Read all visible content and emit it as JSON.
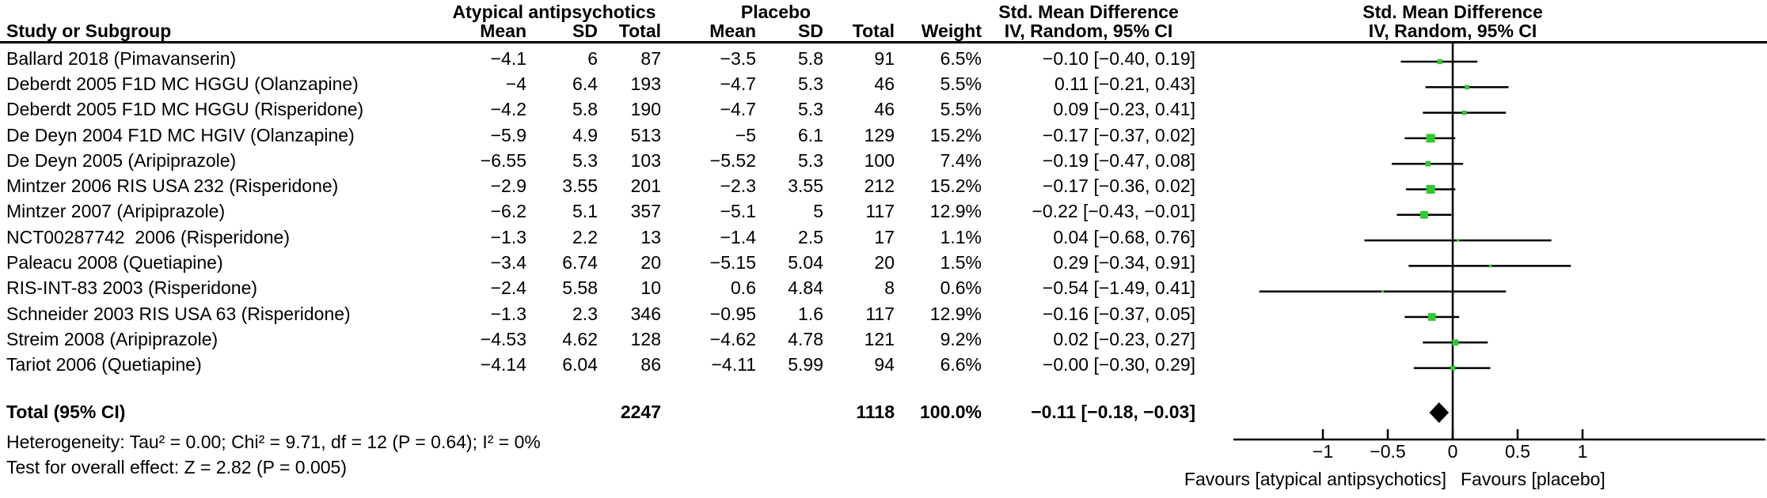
{
  "header": {
    "study": "Study or Subgroup",
    "group1": "Atypical antipsychotics",
    "group2": "Placebo",
    "mean": "Mean",
    "sd": "SD",
    "total": "Total",
    "weight": "Weight",
    "smd": "Std. Mean Difference",
    "method": "IV, Random, 95% CI"
  },
  "rows": [
    {
      "study": "Ballard 2018 (Pimavanserin)",
      "a_mean": "−4.1",
      "a_sd": "6",
      "a_total": "87",
      "p_mean": "−3.5",
      "p_sd": "5.8",
      "p_total": "91",
      "weight": "6.5%",
      "ci": "−0.10 [−0.40, 0.19]"
    },
    {
      "study": "Deberdt 2005 F1D MC HGGU (Olanzapine)",
      "a_mean": "−4",
      "a_sd": "6.4",
      "a_total": "193",
      "p_mean": "−4.7",
      "p_sd": "5.3",
      "p_total": "46",
      "weight": "5.5%",
      "ci": "0.11 [−0.21, 0.43]"
    },
    {
      "study": "Deberdt 2005 F1D MC HGGU (Risperidone)",
      "a_mean": "−4.2",
      "a_sd": "5.8",
      "a_total": "190",
      "p_mean": "−4.7",
      "p_sd": "5.3",
      "p_total": "46",
      "weight": "5.5%",
      "ci": "0.09 [−0.23, 0.41]"
    },
    {
      "study": "De Deyn 2004 F1D MC HGIV (Olanzapine)",
      "a_mean": "−5.9",
      "a_sd": "4.9",
      "a_total": "513",
      "p_mean": "−5",
      "p_sd": "6.1",
      "p_total": "129",
      "weight": "15.2%",
      "ci": "−0.17 [−0.37, 0.02]"
    },
    {
      "study": "De Deyn 2005 (Aripiprazole)",
      "a_mean": "−6.55",
      "a_sd": "5.3",
      "a_total": "103",
      "p_mean": "−5.52",
      "p_sd": "5.3",
      "p_total": "100",
      "weight": "7.4%",
      "ci": "−0.19 [−0.47, 0.08]"
    },
    {
      "study": "Mintzer 2006 RIS USA 232 (Risperidone)",
      "a_mean": "−2.9",
      "a_sd": "3.55",
      "a_total": "201",
      "p_mean": "−2.3",
      "p_sd": "3.55",
      "p_total": "212",
      "weight": "15.2%",
      "ci": "−0.17 [−0.36, 0.02]"
    },
    {
      "study": "Mintzer 2007 (Aripiprazole)",
      "a_mean": "−6.2",
      "a_sd": "5.1",
      "a_total": "357",
      "p_mean": "−5.1",
      "p_sd": "5",
      "p_total": "117",
      "weight": "12.9%",
      "ci": "−0.22 [−0.43, −0.01]"
    },
    {
      "study": "NCT00287742  2006 (Risperidone)",
      "a_mean": "−1.3",
      "a_sd": "2.2",
      "a_total": "13",
      "p_mean": "−1.4",
      "p_sd": "2.5",
      "p_total": "17",
      "weight": "1.1%",
      "ci": "0.04 [−0.68, 0.76]"
    },
    {
      "study": "Paleacu 2008 (Quetiapine)",
      "a_mean": "−3.4",
      "a_sd": "6.74",
      "a_total": "20",
      "p_mean": "−5.15",
      "p_sd": "5.04",
      "p_total": "20",
      "weight": "1.5%",
      "ci": "0.29 [−0.34, 0.91]"
    },
    {
      "study": "RIS-INT-83 2003 (Risperidone)",
      "a_mean": "−2.4",
      "a_sd": "5.58",
      "a_total": "10",
      "p_mean": "0.6",
      "p_sd": "4.84",
      "p_total": "8",
      "weight": "0.6%",
      "ci": "−0.54 [−1.49, 0.41]"
    },
    {
      "study": "Schneider 2003 RIS USA 63 (Risperidone)",
      "a_mean": "−1.3",
      "a_sd": "2.3",
      "a_total": "346",
      "p_mean": "−0.95",
      "p_sd": "1.6",
      "p_total": "117",
      "weight": "12.9%",
      "ci": "−0.16 [−0.37, 0.05]"
    },
    {
      "study": "Streim 2008 (Aripiprazole)",
      "a_mean": "−4.53",
      "a_sd": "4.62",
      "a_total": "128",
      "p_mean": "−4.62",
      "p_sd": "4.78",
      "p_total": "121",
      "weight": "9.2%",
      "ci": "0.02 [−0.23, 0.27]"
    },
    {
      "study": "Tariot 2006 (Quetiapine)",
      "a_mean": "−4.14",
      "a_sd": "6.04",
      "a_total": "86",
      "p_mean": "−4.11",
      "p_sd": "5.99",
      "p_total": "94",
      "weight": "6.6%",
      "ci": "−0.00 [−0.30, 0.29]"
    }
  ],
  "total": {
    "label": "Total (95% CI)",
    "a_total": "2247",
    "p_total": "1118",
    "weight": "100.0%",
    "ci": "−0.11 [−0.18, −0.03]"
  },
  "footer": {
    "heterogeneity": "Heterogeneity: Tau² = 0.00; Chi² = 9.71, df = 12 (P = 0.64); I² = 0%",
    "overall": "Test for overall effect: Z = 2.82 (P = 0.005)"
  },
  "chart_data": {
    "type": "scatter",
    "variant": "forest-plot",
    "title": "Std. Mean Difference",
    "effect_measure": "IV, Random, 95% CI",
    "studies": [
      {
        "name": "Ballard 2018 (Pimavanserin)",
        "est": -0.1,
        "lo": -0.4,
        "hi": 0.19,
        "weight": 6.5
      },
      {
        "name": "Deberdt 2005 F1D MC HGGU (Olanzapine)",
        "est": 0.11,
        "lo": -0.21,
        "hi": 0.43,
        "weight": 5.5
      },
      {
        "name": "Deberdt 2005 F1D MC HGGU (Risperidone)",
        "est": 0.09,
        "lo": -0.23,
        "hi": 0.41,
        "weight": 5.5
      },
      {
        "name": "De Deyn 2004 F1D MC HGIV (Olanzapine)",
        "est": -0.17,
        "lo": -0.37,
        "hi": 0.02,
        "weight": 15.2
      },
      {
        "name": "De Deyn 2005 (Aripiprazole)",
        "est": -0.19,
        "lo": -0.47,
        "hi": 0.08,
        "weight": 7.4
      },
      {
        "name": "Mintzer 2006 RIS USA 232 (Risperidone)",
        "est": -0.17,
        "lo": -0.36,
        "hi": 0.02,
        "weight": 15.2
      },
      {
        "name": "Mintzer 2007 (Aripiprazole)",
        "est": -0.22,
        "lo": -0.43,
        "hi": -0.01,
        "weight": 12.9
      },
      {
        "name": "NCT00287742  2006 (Risperidone)",
        "est": 0.04,
        "lo": -0.68,
        "hi": 0.76,
        "weight": 1.1
      },
      {
        "name": "Paleacu 2008 (Quetiapine)",
        "est": 0.29,
        "lo": -0.34,
        "hi": 0.91,
        "weight": 1.5
      },
      {
        "name": "RIS-INT-83 2003 (Risperidone)",
        "est": -0.54,
        "lo": -1.49,
        "hi": 0.41,
        "weight": 0.6
      },
      {
        "name": "Schneider 2003 RIS USA 63 (Risperidone)",
        "est": -0.16,
        "lo": -0.37,
        "hi": 0.05,
        "weight": 12.9
      },
      {
        "name": "Streim 2008 (Aripiprazole)",
        "est": 0.02,
        "lo": -0.23,
        "hi": 0.27,
        "weight": 9.2
      },
      {
        "name": "Tariot 2006 (Quetiapine)",
        "est": -0.0,
        "lo": -0.3,
        "hi": 0.29,
        "weight": 6.6
      }
    ],
    "total": {
      "name": "Total (95% CI)",
      "est": -0.11,
      "lo": -0.18,
      "hi": -0.03
    },
    "axis": {
      "ticks": [
        -1,
        -0.5,
        0,
        0.5,
        1
      ],
      "tick_labels": [
        "−1",
        "−0.5",
        "0",
        "0.5",
        "1"
      ],
      "xlim": [
        -1.68,
        2.4
      ],
      "zero_line": 0,
      "favours_left": "Favours [atypical antipsychotics]",
      "favours_right": "Favours [placebo]"
    },
    "marker_color": "#32C832",
    "line_color": "#000000"
  }
}
